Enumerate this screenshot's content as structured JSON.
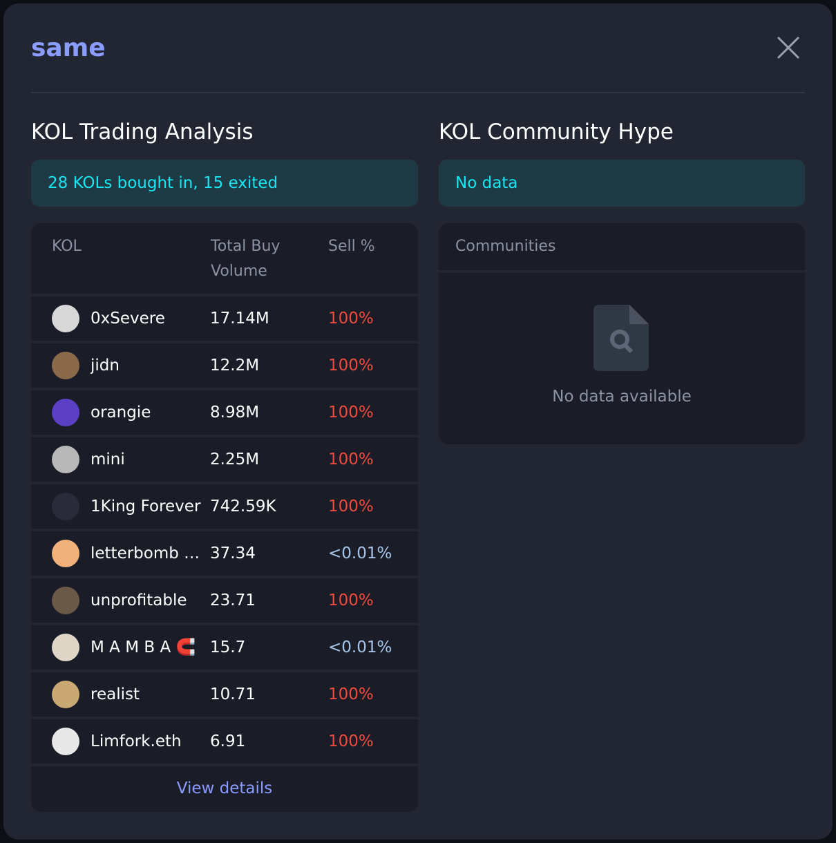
{
  "header": {
    "title": "same",
    "close_icon": "close-icon"
  },
  "trading": {
    "heading": "KOL Trading Analysis",
    "summary": "28 KOLs bought in, 15 exited",
    "columns": {
      "kol": "KOL",
      "volume": "Total Buy Volume",
      "sell": "Sell %"
    },
    "rows": [
      {
        "name": "0xSevere",
        "volume": "17.14M",
        "sell": "100%"
      },
      {
        "name": "jidn",
        "volume": "12.2M",
        "sell": "100%"
      },
      {
        "name": "orangie",
        "volume": "8.98M",
        "sell": "100%"
      },
      {
        "name": "mini",
        "volume": "2.25M",
        "sell": "100%"
      },
      {
        "name": "1King Forever",
        "volume": "742.59K",
        "sell": "100%"
      },
      {
        "name": "letterbomb …",
        "volume": "37.34",
        "sell": "<0.01%"
      },
      {
        "name": "unprofitable",
        "volume": "23.71",
        "sell": "100%"
      },
      {
        "name": "M A M B A 🧲",
        "volume": "15.7",
        "sell": "<0.01%"
      },
      {
        "name": "realist",
        "volume": "10.71",
        "sell": "100%"
      },
      {
        "name": "Limfork.eth",
        "volume": "6.91",
        "sell": "100%"
      }
    ],
    "view_details": "View details"
  },
  "community": {
    "heading": "KOL Community Hype",
    "summary": "No data",
    "column": "Communities",
    "empty": "No data available",
    "empty_icon": "file-search-icon"
  },
  "colors": {
    "accent": "#8b9cff",
    "cyan": "#19e6f2",
    "red": "#f04b3c",
    "muted_blue": "#a8c4e8"
  }
}
